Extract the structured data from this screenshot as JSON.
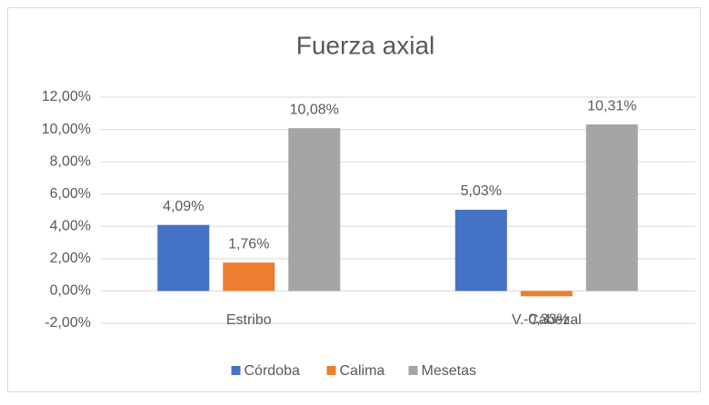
{
  "chart_data": {
    "type": "bar",
    "title": "Fuerza axial",
    "categories": [
      "Estribo",
      "V. Cabezal"
    ],
    "series": [
      {
        "name": "Córdoba",
        "color": "#4472c4",
        "values": [
          4.09,
          5.03
        ],
        "value_labels": [
          "4,09%",
          "5,03%"
        ]
      },
      {
        "name": "Calima",
        "color": "#ed7d31",
        "values": [
          1.76,
          -0.33
        ],
        "value_labels": [
          "1,76%",
          "-0,33%"
        ]
      },
      {
        "name": "Mesetas",
        "color": "#a5a5a5",
        "values": [
          10.08,
          10.31
        ],
        "value_labels": [
          "10,08%",
          "10,31%"
        ]
      }
    ],
    "ylim": [
      -2,
      12
    ],
    "yticks": [
      {
        "value": -2,
        "label": "-2,00%"
      },
      {
        "value": 0,
        "label": "0,00%"
      },
      {
        "value": 2,
        "label": "2,00%"
      },
      {
        "value": 4,
        "label": "4,00%"
      },
      {
        "value": 6,
        "label": "6,00%"
      },
      {
        "value": 8,
        "label": "8,00%"
      },
      {
        "value": 10,
        "label": "10,00%"
      },
      {
        "value": 12,
        "label": "12,00%"
      }
    ],
    "grid": true,
    "legend": "bottom"
  }
}
